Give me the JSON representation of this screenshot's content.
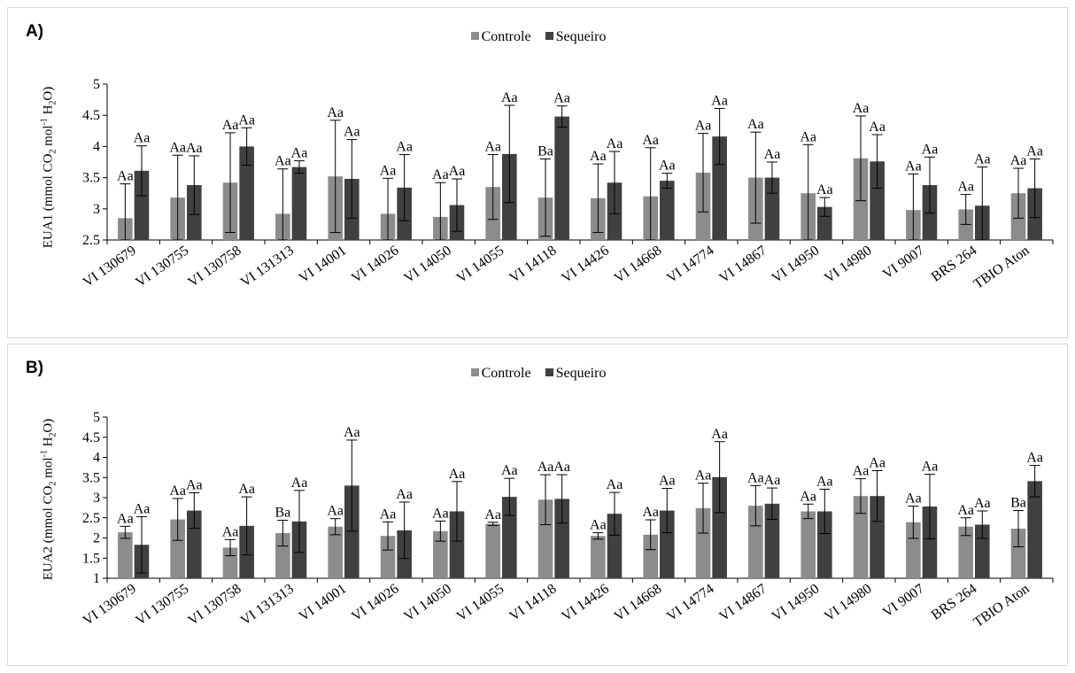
{
  "chart_data": [
    {
      "type": "bar",
      "panel_label": "A)",
      "ylabel_prefix": "EUA1 (mmol CO",
      "ylabel_sub1": "2",
      "ylabel_mid": " mol",
      "ylabel_sup": "-1",
      "ylabel_mid2": " H",
      "ylabel_sub2": "2",
      "ylabel_suffix": "O)",
      "ylim": [
        2.5,
        5
      ],
      "yticks": [
        "2.5",
        "3",
        "3.5",
        "4",
        "4.5",
        "5"
      ],
      "yticks_values": [
        2.5,
        3,
        3.5,
        4,
        4.5,
        5
      ],
      "legend_position": "top-center",
      "categories": [
        "VI 130679",
        "VI 130755",
        "VI 130758",
        "VI 131313",
        "VI 14001",
        "VI 14026",
        "VI 14050",
        "VI 14055",
        "VI 14118",
        "VI 14426",
        "VI 14668",
        "VI 14774",
        "VI 14867",
        "VI 14950",
        "VI 14980",
        "VI 9007",
        "BRS 264",
        "TBIO Aton"
      ],
      "series": [
        {
          "name": "Controle",
          "color": "#8c8c8c",
          "values": [
            2.85,
            3.18,
            3.42,
            2.92,
            3.52,
            2.92,
            2.87,
            3.35,
            3.18,
            3.17,
            3.2,
            3.58,
            3.5,
            3.25,
            3.81,
            2.98,
            2.99,
            3.25
          ],
          "errors": [
            0.55,
            0.68,
            0.8,
            0.72,
            0.9,
            0.57,
            0.55,
            0.52,
            0.62,
            0.55,
            0.78,
            0.63,
            0.73,
            0.78,
            0.68,
            0.58,
            0.24,
            0.4
          ],
          "letters": [
            "Aa",
            "Aa",
            "Aa",
            "Aa",
            "Aa",
            "Aa",
            "Aa",
            "Aa",
            "Ba",
            "Aa",
            "Aa",
            "Aa",
            "Aa",
            "Aa",
            "Aa",
            "Aa",
            "Aa",
            "Aa"
          ]
        },
        {
          "name": "Sequeiro",
          "color": "#404040",
          "values": [
            3.61,
            3.38,
            4.0,
            3.67,
            3.48,
            3.34,
            3.06,
            3.88,
            4.48,
            3.42,
            3.45,
            4.16,
            3.5,
            3.03,
            3.76,
            3.38,
            3.05,
            3.33
          ],
          "errors": [
            0.4,
            0.47,
            0.3,
            0.1,
            0.63,
            0.53,
            0.42,
            0.78,
            0.17,
            0.5,
            0.12,
            0.45,
            0.25,
            0.15,
            0.43,
            0.45,
            0.62,
            0.47
          ],
          "letters": [
            "Aa",
            "Aa",
            "Aa",
            "Aa",
            "Aa",
            "Aa",
            "Aa",
            "Aa",
            "Aa",
            "Aa",
            "Aa",
            "Aa",
            "Aa",
            "Aa",
            "Aa",
            "Aa",
            "Aa",
            "Aa"
          ]
        }
      ]
    },
    {
      "type": "bar",
      "panel_label": "B)",
      "ylabel_prefix": "EUA2 (mmol CO",
      "ylabel_sub1": "2",
      "ylabel_mid": " mol",
      "ylabel_sup": "-1",
      "ylabel_mid2": " H",
      "ylabel_sub2": "2",
      "ylabel_suffix": "O)",
      "ylim": [
        1,
        5
      ],
      "yticks": [
        "1",
        "1.5",
        "2",
        "2.5",
        "3",
        "3.5",
        "4",
        "4.5",
        "5"
      ],
      "yticks_values": [
        1,
        1.5,
        2,
        2.5,
        3,
        3.5,
        4,
        4.5,
        5
      ],
      "legend_position": "top-center",
      "categories": [
        "VI 130679",
        "VI 130755",
        "VI 130758",
        "VI 131313",
        "VI 14001",
        "VI 14026",
        "VI 14050",
        "VI 14055",
        "VI 14118",
        "VI 14426",
        "VI 14668",
        "VI 14774",
        "VI 14867",
        "VI 14950",
        "VI 14980",
        "VI 9007",
        "BRS 264",
        "TBIO Aton"
      ],
      "series": [
        {
          "name": "Controle",
          "color": "#8c8c8c",
          "values": [
            2.14,
            2.46,
            1.76,
            2.12,
            2.28,
            2.05,
            2.17,
            2.35,
            2.95,
            2.05,
            2.08,
            2.74,
            2.8,
            2.66,
            3.04,
            2.39,
            2.28,
            2.23
          ],
          "errors": [
            0.15,
            0.52,
            0.2,
            0.32,
            0.2,
            0.35,
            0.25,
            0.04,
            0.62,
            0.08,
            0.37,
            0.62,
            0.5,
            0.18,
            0.43,
            0.4,
            0.22,
            0.45
          ],
          "letters": [
            "Aa",
            "Aa",
            "Aa",
            "Ba",
            "Aa",
            "Aa",
            "Aa",
            "Aa",
            "Aa",
            "Aa",
            "Aa",
            "Aa",
            "Aa",
            "Aa",
            "Aa",
            "Aa",
            "Aa",
            "Ba"
          ]
        },
        {
          "name": "Sequeiro",
          "color": "#404040",
          "values": [
            1.83,
            2.68,
            2.3,
            2.41,
            3.3,
            2.19,
            2.66,
            3.02,
            2.97,
            2.6,
            2.68,
            3.51,
            2.85,
            2.66,
            3.04,
            2.78,
            2.33,
            3.41
          ],
          "errors": [
            0.7,
            0.44,
            0.72,
            0.77,
            1.13,
            0.7,
            0.74,
            0.46,
            0.6,
            0.53,
            0.55,
            0.88,
            0.39,
            0.55,
            0.63,
            0.8,
            0.34,
            0.39
          ],
          "letters": [
            "Aa",
            "Aa",
            "Aa",
            "Aa",
            "Aa",
            "Aa",
            "Aa",
            "Aa",
            "Aa",
            "Aa",
            "Aa",
            "Aa",
            "Aa",
            "Aa",
            "Aa",
            "Aa",
            "Aa",
            "Aa"
          ]
        }
      ]
    }
  ]
}
